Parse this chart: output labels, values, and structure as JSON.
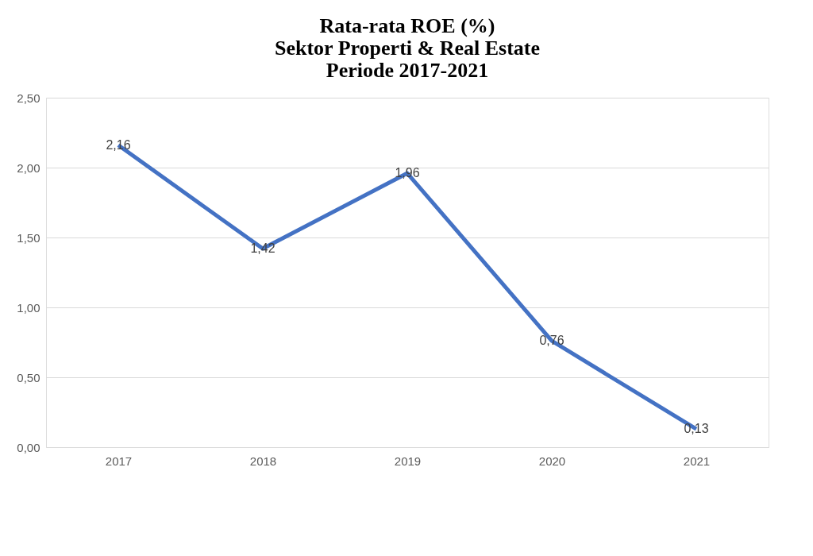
{
  "chart_data": {
    "type": "line",
    "title": "Rata-rata ROE (%)\nSektor Properti & Real Estate\nPeriode 2017-2021",
    "categories": [
      "2017",
      "2018",
      "2019",
      "2020",
      "2021"
    ],
    "series": [
      {
        "color": "#4472c4",
        "values": [
          2.16,
          1.42,
          1.96,
          0.76,
          0.13
        ],
        "value_labels": [
          "2,16",
          "1,42",
          "1,96",
          "0,76",
          "0,13"
        ]
      }
    ],
    "ylim": [
      0,
      2.5
    ],
    "yticks": [
      {
        "value": 0,
        "label": "0,00"
      },
      {
        "value": 0.5,
        "label": "0,50"
      },
      {
        "value": 1,
        "label": "1,00"
      },
      {
        "value": 1.5,
        "label": "1,50"
      },
      {
        "value": 2,
        "label": "2,00"
      },
      {
        "value": 2.5,
        "label": "2,50"
      }
    ],
    "grid": "y",
    "legend": false,
    "marker": "none",
    "line_style": "solid"
  }
}
